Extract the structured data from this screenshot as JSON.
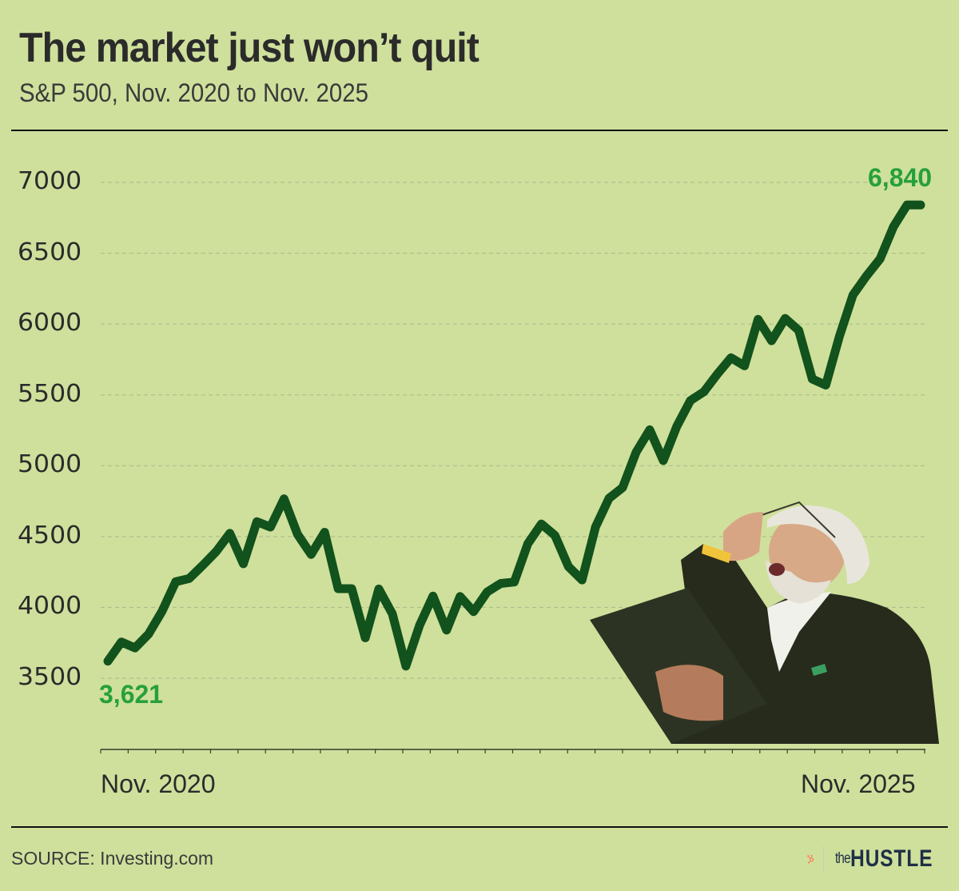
{
  "header": {
    "title": "The market just won’t quit",
    "subtitle": "S&P 500, Nov. 2020 to Nov. 2025"
  },
  "axis": {
    "y_ticks": [
      "7000",
      "6500",
      "6000",
      "5500",
      "5000",
      "4500",
      "4000",
      "3500"
    ],
    "x_start_label": "Nov. 2020",
    "x_end_label": "Nov. 2025"
  },
  "annotations": {
    "start_value": "3,621",
    "end_value": "6,840"
  },
  "footer": {
    "source": "SOURCE: Investing.com",
    "logo_the": "the",
    "logo_hustle": "HUSTLE"
  },
  "colors": {
    "background": "#cfe09c",
    "line": "#12521c",
    "annotation": "#27a03c",
    "gridline": "#a9b98a",
    "hubspot_orange": "#ff7a59",
    "hustle_navy": "#1f2f46"
  },
  "chart_data": {
    "type": "line",
    "title": "The market just won’t quit",
    "subtitle": "S&P 500, Nov. 2020 to Nov. 2025",
    "xlabel": "",
    "ylabel": "",
    "ylim": [
      3500,
      7000
    ],
    "yticks": [
      3500,
      4000,
      4500,
      5000,
      5500,
      6000,
      6500,
      7000
    ],
    "grid": "horizontal dashed",
    "legend": "none",
    "x_tick_labels": [
      "Nov. 2020",
      "Nov. 2025"
    ],
    "x_frequency": "monthly",
    "annotations": [
      {
        "label": "3,621",
        "at": "Nov. 2020"
      },
      {
        "label": "6,840",
        "at": "Nov. 2025"
      }
    ],
    "series": [
      {
        "name": "S&P 500",
        "values": [
          3621,
          3756,
          3714,
          3811,
          3973,
          4181,
          4204,
          4297,
          4395,
          4523,
          4308,
          4605,
          4567,
          4766,
          4516,
          4374,
          4530,
          4132,
          4132,
          3785,
          4130,
          3955,
          3586,
          3872,
          4080,
          3840,
          4077,
          3970,
          4109,
          4169,
          4179,
          4450,
          4589,
          4508,
          4288,
          4194,
          4568,
          4770,
          4846,
          5096,
          5254,
          5036,
          5278,
          5460,
          5522,
          5648,
          5762,
          5705,
          6033,
          5882,
          6040,
          5955,
          5612,
          5569,
          5912,
          6205,
          6339,
          6460,
          6688,
          6840,
          6840
        ]
      }
    ],
    "source": "Investing.com"
  }
}
